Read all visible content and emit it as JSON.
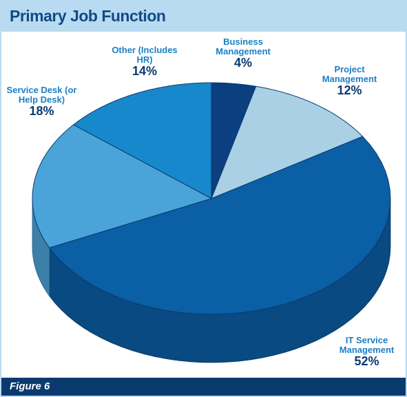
{
  "chart_data": {
    "type": "pie3d",
    "title": "Primary Job Function",
    "figure_label": "Figure 6",
    "categories": [
      "Business Management",
      "Project Management",
      "IT Service Management",
      "Service Desk (or Help Desk)",
      "Other (Includes HR)"
    ],
    "values": [
      4,
      12,
      52,
      18,
      14
    ],
    "value_labels": [
      "4%",
      "12%",
      "52%",
      "18%",
      "14%"
    ],
    "colors": [
      "#0b3f80",
      "#a9d0e4",
      "#0a5fa5",
      "#4ba4d9",
      "#1788cb"
    ]
  }
}
